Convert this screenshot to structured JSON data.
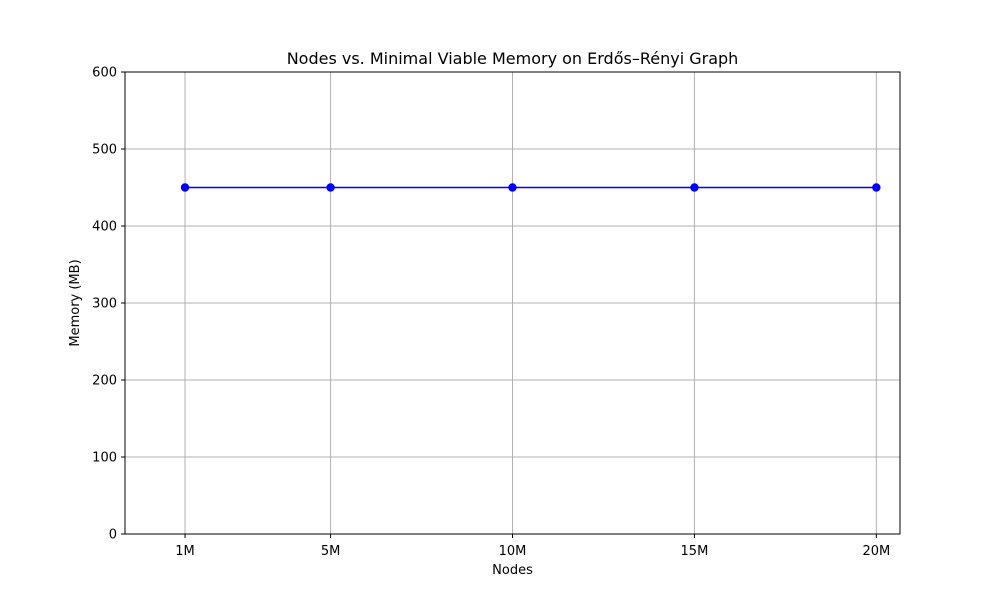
{
  "chart_data": {
    "type": "line",
    "title": "Nodes vs. Minimal Viable Memory on Erdős–Rényi Graph",
    "xlabel": "Nodes",
    "ylabel": "Memory (MB)",
    "x": [
      1,
      5,
      10,
      15,
      20
    ],
    "x_tick_labels": [
      "1M",
      "5M",
      "10M",
      "15M",
      "20M"
    ],
    "xlim": [
      -0.65,
      20.65
    ],
    "ylim": [
      0,
      600
    ],
    "y_ticks": [
      0,
      100,
      200,
      300,
      400,
      500,
      600
    ],
    "series": [
      {
        "values": [
          450,
          450,
          450,
          450,
          450
        ],
        "color": "#0000ff",
        "marker": "circle"
      }
    ],
    "grid": true,
    "legend": "none"
  }
}
